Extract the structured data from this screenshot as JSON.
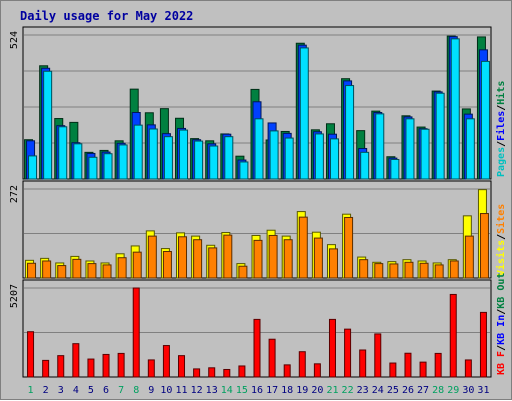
{
  "chart_data": {
    "type": "bar",
    "title": "Daily usage for May 2022",
    "categories": [
      "1",
      "2",
      "3",
      "4",
      "5",
      "6",
      "7",
      "8",
      "9",
      "10",
      "11",
      "12",
      "13",
      "14",
      "15",
      "16",
      "17",
      "18",
      "19",
      "20",
      "21",
      "22",
      "23",
      "24",
      "25",
      "26",
      "27",
      "28",
      "29",
      "30",
      "31"
    ],
    "weekend_days": [
      "1",
      "7",
      "8",
      "14",
      "15",
      "21",
      "22",
      "28",
      "29"
    ],
    "grid": true,
    "panels": [
      {
        "id": "top",
        "ymax": 524,
        "ymax_label": "524",
        "legend": [
          "Pages",
          "Files",
          "Hits"
        ],
        "series": [
          {
            "name": "Hits",
            "color": "#008040",
            "values": [
              143,
              412,
              220,
              206,
              97,
              104,
              139,
              327,
              241,
              256,
              221,
              147,
              139,
              164,
              83,
              326,
              142,
              173,
              494,
              179,
              201,
              365,
              176,
              247,
              81,
              230,
              189,
              320,
              520,
              255,
              517
            ]
          },
          {
            "name": "Files",
            "color": "#0040ff",
            "values": [
              139,
              403,
              194,
              132,
              93,
              98,
              130,
              242,
              197,
              165,
              184,
              143,
              128,
              163,
              69,
              281,
              204,
              166,
              487,
              172,
              163,
              357,
              111,
              242,
              76,
              226,
              183,
              317,
              518,
              236,
              470
            ]
          },
          {
            "name": "Pages",
            "color": "#00e0ff",
            "values": [
              84,
              392,
              190,
              128,
              79,
              92,
              124,
              196,
              182,
              154,
              178,
              138,
              120,
              154,
              62,
              219,
              175,
              149,
              477,
              164,
              146,
              340,
              97,
              237,
              71,
              219,
              181,
              312,
              510,
              219,
              428
            ]
          }
        ]
      },
      {
        "id": "middle",
        "ymax": 272,
        "ymax_label": "272",
        "legend": [
          "Visits",
          "Sites"
        ],
        "series": [
          {
            "name": "Visits",
            "color": "#ffff00",
            "values": [
              54,
              60,
              46,
              66,
              52,
              46,
              74,
              98,
              144,
              90,
              138,
              128,
              100,
              139,
              44,
              130,
              146,
              128,
              203,
              140,
              102,
              195,
              64,
              48,
              50,
              56,
              52,
              46,
              56,
              190,
              270
            ]
          },
          {
            "name": "Sites",
            "color": "#ff8000",
            "values": [
              45,
              52,
              38,
              57,
              44,
              40,
              62,
              79,
              128,
              81,
              126,
              117,
              92,
              131,
              36,
              115,
              130,
              117,
              186,
              122,
              89,
              185,
              56,
              44,
              43,
              48,
              45,
              40,
              52,
              128,
              197
            ]
          }
        ]
      },
      {
        "id": "bottom",
        "ymax": 5207,
        "ymax_label": "5207",
        "legend": [
          "KB F",
          "KB In",
          "KB Out"
        ],
        "series": [
          {
            "name": "KB F",
            "color": "#ff0000",
            "values": [
              2650,
              972,
              1250,
              1950,
              1050,
              1320,
              1380,
              5207,
              1000,
              1840,
              1250,
              474,
              538,
              440,
              646,
              3370,
              2210,
              710,
              1480,
              771,
              3370,
              2800,
              1580,
              2520,
              817,
              1390,
              870,
              1380,
              4830,
              998,
              3780
            ]
          }
        ]
      }
    ]
  }
}
